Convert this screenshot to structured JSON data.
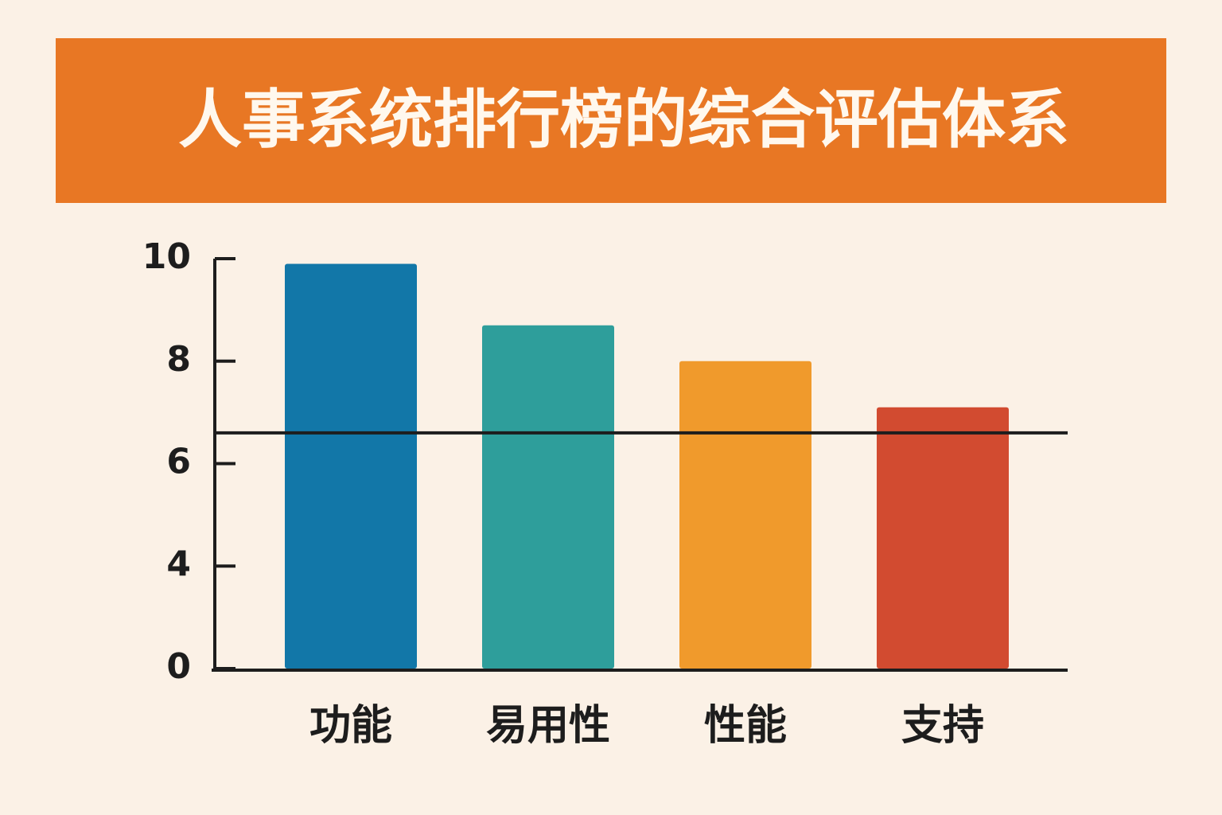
{
  "chart_data": {
    "type": "bar",
    "title": "人事系统排行榜的综合评估体系",
    "categories": [
      "功能",
      "易用性",
      "性能",
      "支持"
    ],
    "values": [
      9.9,
      8.7,
      8.0,
      7.1
    ],
    "colors": [
      "#1277a8",
      "#2e9e9b",
      "#f09a2c",
      "#d24b30"
    ],
    "ylim": [
      0,
      10
    ],
    "yticks": [
      0,
      4,
      6,
      8,
      10
    ],
    "reference_line": 6.6
  }
}
